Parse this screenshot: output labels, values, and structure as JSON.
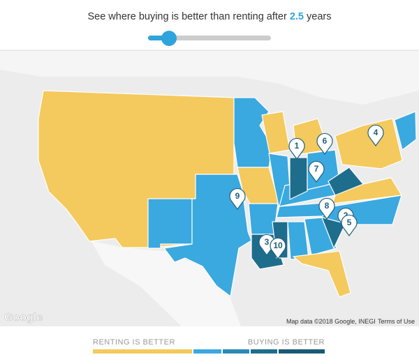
{
  "header": {
    "title_prefix": "See where buying is better than renting after",
    "years": "2.5",
    "title_suffix": "years"
  },
  "pins": [
    "1",
    "6",
    "4",
    "7",
    "9",
    "8",
    "2",
    "5",
    "3",
    "10"
  ],
  "attribution": {
    "logo": "Google",
    "map_data": "Map data ©2018 Google, INEGI",
    "terms": "Terms of Use"
  },
  "legend": {
    "left": "RENTING IS BETTER",
    "right": "BUYING IS BETTER"
  }
}
